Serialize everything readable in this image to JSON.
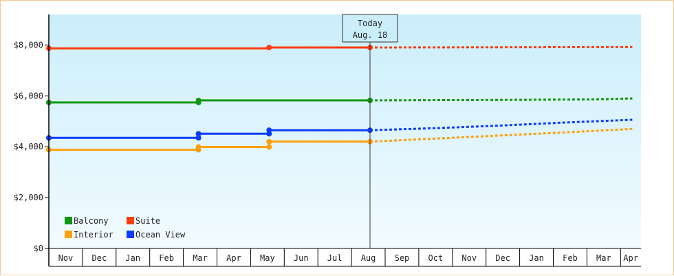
{
  "chart_data": {
    "type": "line",
    "title": "",
    "xlabel": "",
    "ylabel": "",
    "ylim": [
      0,
      9200
    ],
    "y_ticks": [
      0,
      2000,
      4000,
      6000,
      8000
    ],
    "y_tick_labels": [
      "$0",
      "$2,000",
      "$4,000",
      "$6,000",
      "$8,000"
    ],
    "month_labels": [
      "Nov",
      "Dec",
      "Jan",
      "Feb",
      "Mar",
      "Apr",
      "May",
      "Jun",
      "Jul",
      "Aug",
      "Sep",
      "Oct",
      "Nov",
      "Dec",
      "Jan",
      "Feb",
      "Mar",
      "Apr"
    ],
    "grid": false,
    "legend_position": "bottom-left",
    "today": {
      "line1": "Today",
      "line2": "Aug. 18",
      "month_index": 9.55
    },
    "series": [
      {
        "name": "Balcony",
        "color": "#129612",
        "history": [
          [
            0,
            5740
          ],
          [
            4.45,
            5740
          ],
          [
            4.45,
            5820
          ],
          [
            9.55,
            5820
          ]
        ],
        "markers": [
          [
            0,
            5740
          ],
          [
            4.45,
            5740
          ],
          [
            4.45,
            5820
          ],
          [
            9.55,
            5820
          ]
        ],
        "forecast": [
          [
            9.55,
            5820
          ],
          [
            13.4,
            5840
          ],
          [
            16.2,
            5860
          ],
          [
            17.35,
            5900
          ]
        ]
      },
      {
        "name": "Suite",
        "color": "#ff3c0a",
        "history": [
          [
            0,
            7870
          ],
          [
            6.55,
            7870
          ],
          [
            6.55,
            7900
          ],
          [
            9.55,
            7900
          ]
        ],
        "markers": [
          [
            0,
            7870
          ],
          [
            6.55,
            7900
          ],
          [
            9.55,
            7900
          ]
        ],
        "forecast": [
          [
            9.55,
            7900
          ],
          [
            13.4,
            7910
          ],
          [
            17.35,
            7920
          ]
        ]
      },
      {
        "name": "Interior",
        "color": "#faa00a",
        "history": [
          [
            0,
            3880
          ],
          [
            4.45,
            3880
          ],
          [
            4.45,
            3990
          ],
          [
            6.55,
            3990
          ],
          [
            6.55,
            4200
          ],
          [
            9.55,
            4200
          ]
        ],
        "markers": [
          [
            0,
            3880
          ],
          [
            4.45,
            3880
          ],
          [
            4.45,
            3990
          ],
          [
            6.55,
            3990
          ],
          [
            6.55,
            4200
          ],
          [
            9.55,
            4200
          ]
        ],
        "forecast": [
          [
            9.55,
            4200
          ],
          [
            11.5,
            4320
          ],
          [
            13.4,
            4440
          ],
          [
            15.3,
            4560
          ],
          [
            17.35,
            4700
          ]
        ]
      },
      {
        "name": "Ocean View",
        "color": "#0a3cff",
        "history": [
          [
            0,
            4350
          ],
          [
            4.45,
            4350
          ],
          [
            4.45,
            4510
          ],
          [
            6.55,
            4510
          ],
          [
            6.55,
            4650
          ],
          [
            9.55,
            4650
          ]
        ],
        "markers": [
          [
            0,
            4350
          ],
          [
            4.45,
            4350
          ],
          [
            4.45,
            4510
          ],
          [
            6.55,
            4510
          ],
          [
            6.55,
            4650
          ],
          [
            9.55,
            4650
          ]
        ],
        "forecast": [
          [
            9.55,
            4650
          ],
          [
            11.5,
            4730
          ],
          [
            13.4,
            4830
          ],
          [
            15.3,
            4950
          ],
          [
            17.35,
            5060
          ]
        ]
      }
    ]
  }
}
